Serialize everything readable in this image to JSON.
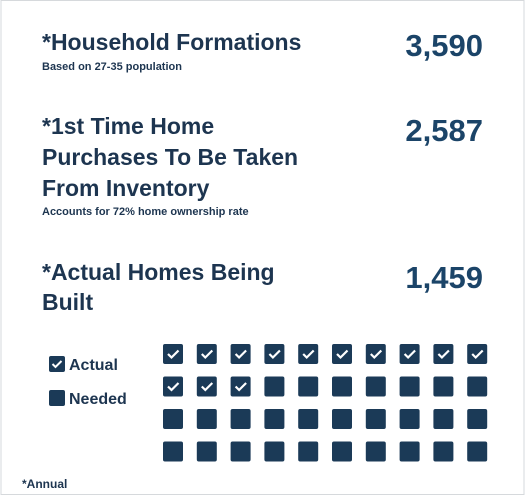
{
  "items": [
    {
      "title": [
        "*Household Formations"
      ],
      "subtitle": "Based on 27-35 population",
      "value": "3,590"
    },
    {
      "title": [
        "*1st Time Home",
        "Purchases To Be Taken",
        "From Inventory"
      ],
      "subtitle": "Accounts for 72% home ownership rate",
      "value": "2,587"
    },
    {
      "title": [
        "*Actual Homes Being",
        "Built"
      ],
      "value": "1,459"
    }
  ],
  "waffle": {
    "legend": [
      {
        "label": "Actual",
        "count": 13
      },
      {
        "label": "Needed",
        "count": 27
      }
    ]
  },
  "footnote": "*Annual"
}
